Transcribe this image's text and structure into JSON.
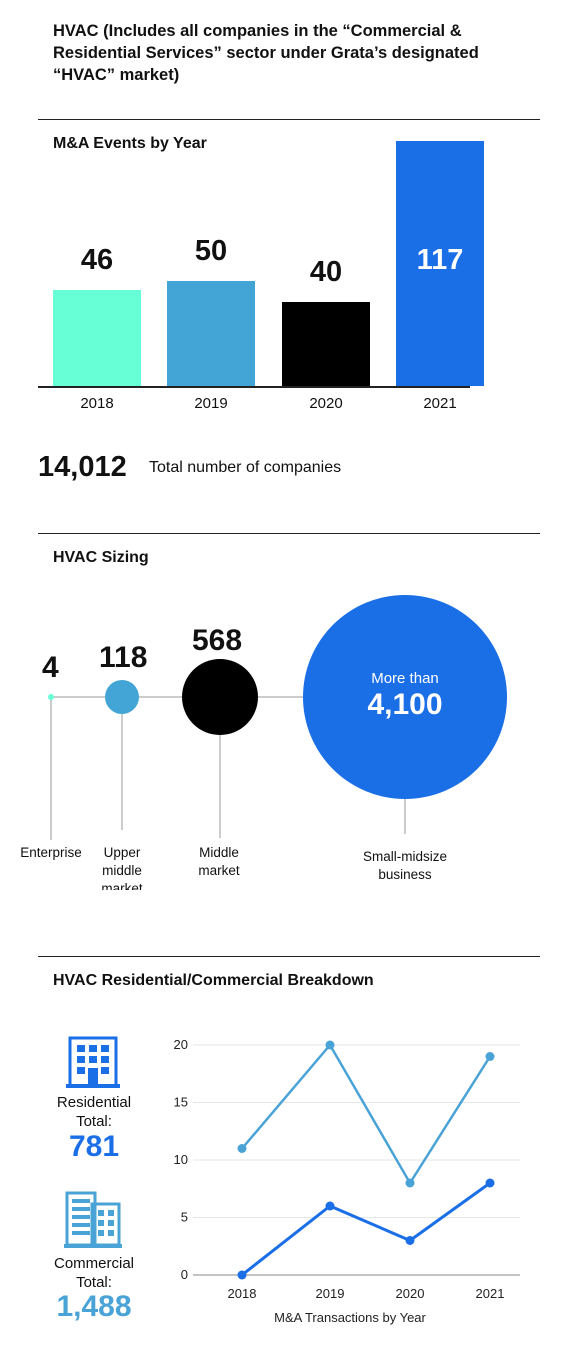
{
  "heading": "HVAC (Includes all companies in the “Commercial & Residential Services” sector under Grata’s designated “HVAC” market)",
  "chart_data": [
    {
      "type": "bar",
      "title": "M&A Events by Year",
      "categories": [
        "2018",
        "2019",
        "2020",
        "2021"
      ],
      "values": [
        46,
        50,
        40,
        117
      ],
      "value_labels": [
        "46",
        "50",
        "40",
        "117"
      ],
      "colors": [
        "#66ffd6",
        "#42a5d6",
        "#000000",
        "#1a6ee6"
      ]
    },
    {
      "type": "scatter",
      "title": "HVAC Sizing",
      "categories": [
        "Enterprise",
        "Upper middle market",
        "Middle market",
        "Small-midsize business"
      ],
      "values": [
        4,
        118,
        568,
        4100
      ],
      "value_labels": [
        "4",
        "118",
        "568",
        "4,100"
      ],
      "prefix_last": "More than",
      "colors": [
        "#66ffd6",
        "#42a5d6",
        "#000000",
        "#1a6ee6"
      ]
    },
    {
      "type": "line",
      "title": "HVAC Residential/Commercial Breakdown",
      "xlabel": "M&A Transactions by Year",
      "x": [
        "2018",
        "2019",
        "2020",
        "2021"
      ],
      "ylim": [
        0,
        20
      ],
      "yticks": [
        0,
        5,
        10,
        15,
        20
      ],
      "series": [
        {
          "name": "Residential",
          "values": [
            11,
            20,
            8,
            19
          ],
          "color": "#4aa3d6"
        },
        {
          "name": "Commercial",
          "values": [
            0,
            6,
            3,
            8
          ],
          "color": "#1a6ee6"
        }
      ]
    }
  ],
  "total_companies": {
    "value": "14,012",
    "label": "Total number of companies"
  },
  "residential": {
    "label1": "Residential",
    "label2": "Total:",
    "value": "781",
    "color": "#1a6ee6"
  },
  "commercial": {
    "label1": "Commercial",
    "label2": "Total:",
    "value": "1,488",
    "color": "#4aa3d6"
  },
  "icons": [
    "building-icon",
    "office-building-icon"
  ]
}
